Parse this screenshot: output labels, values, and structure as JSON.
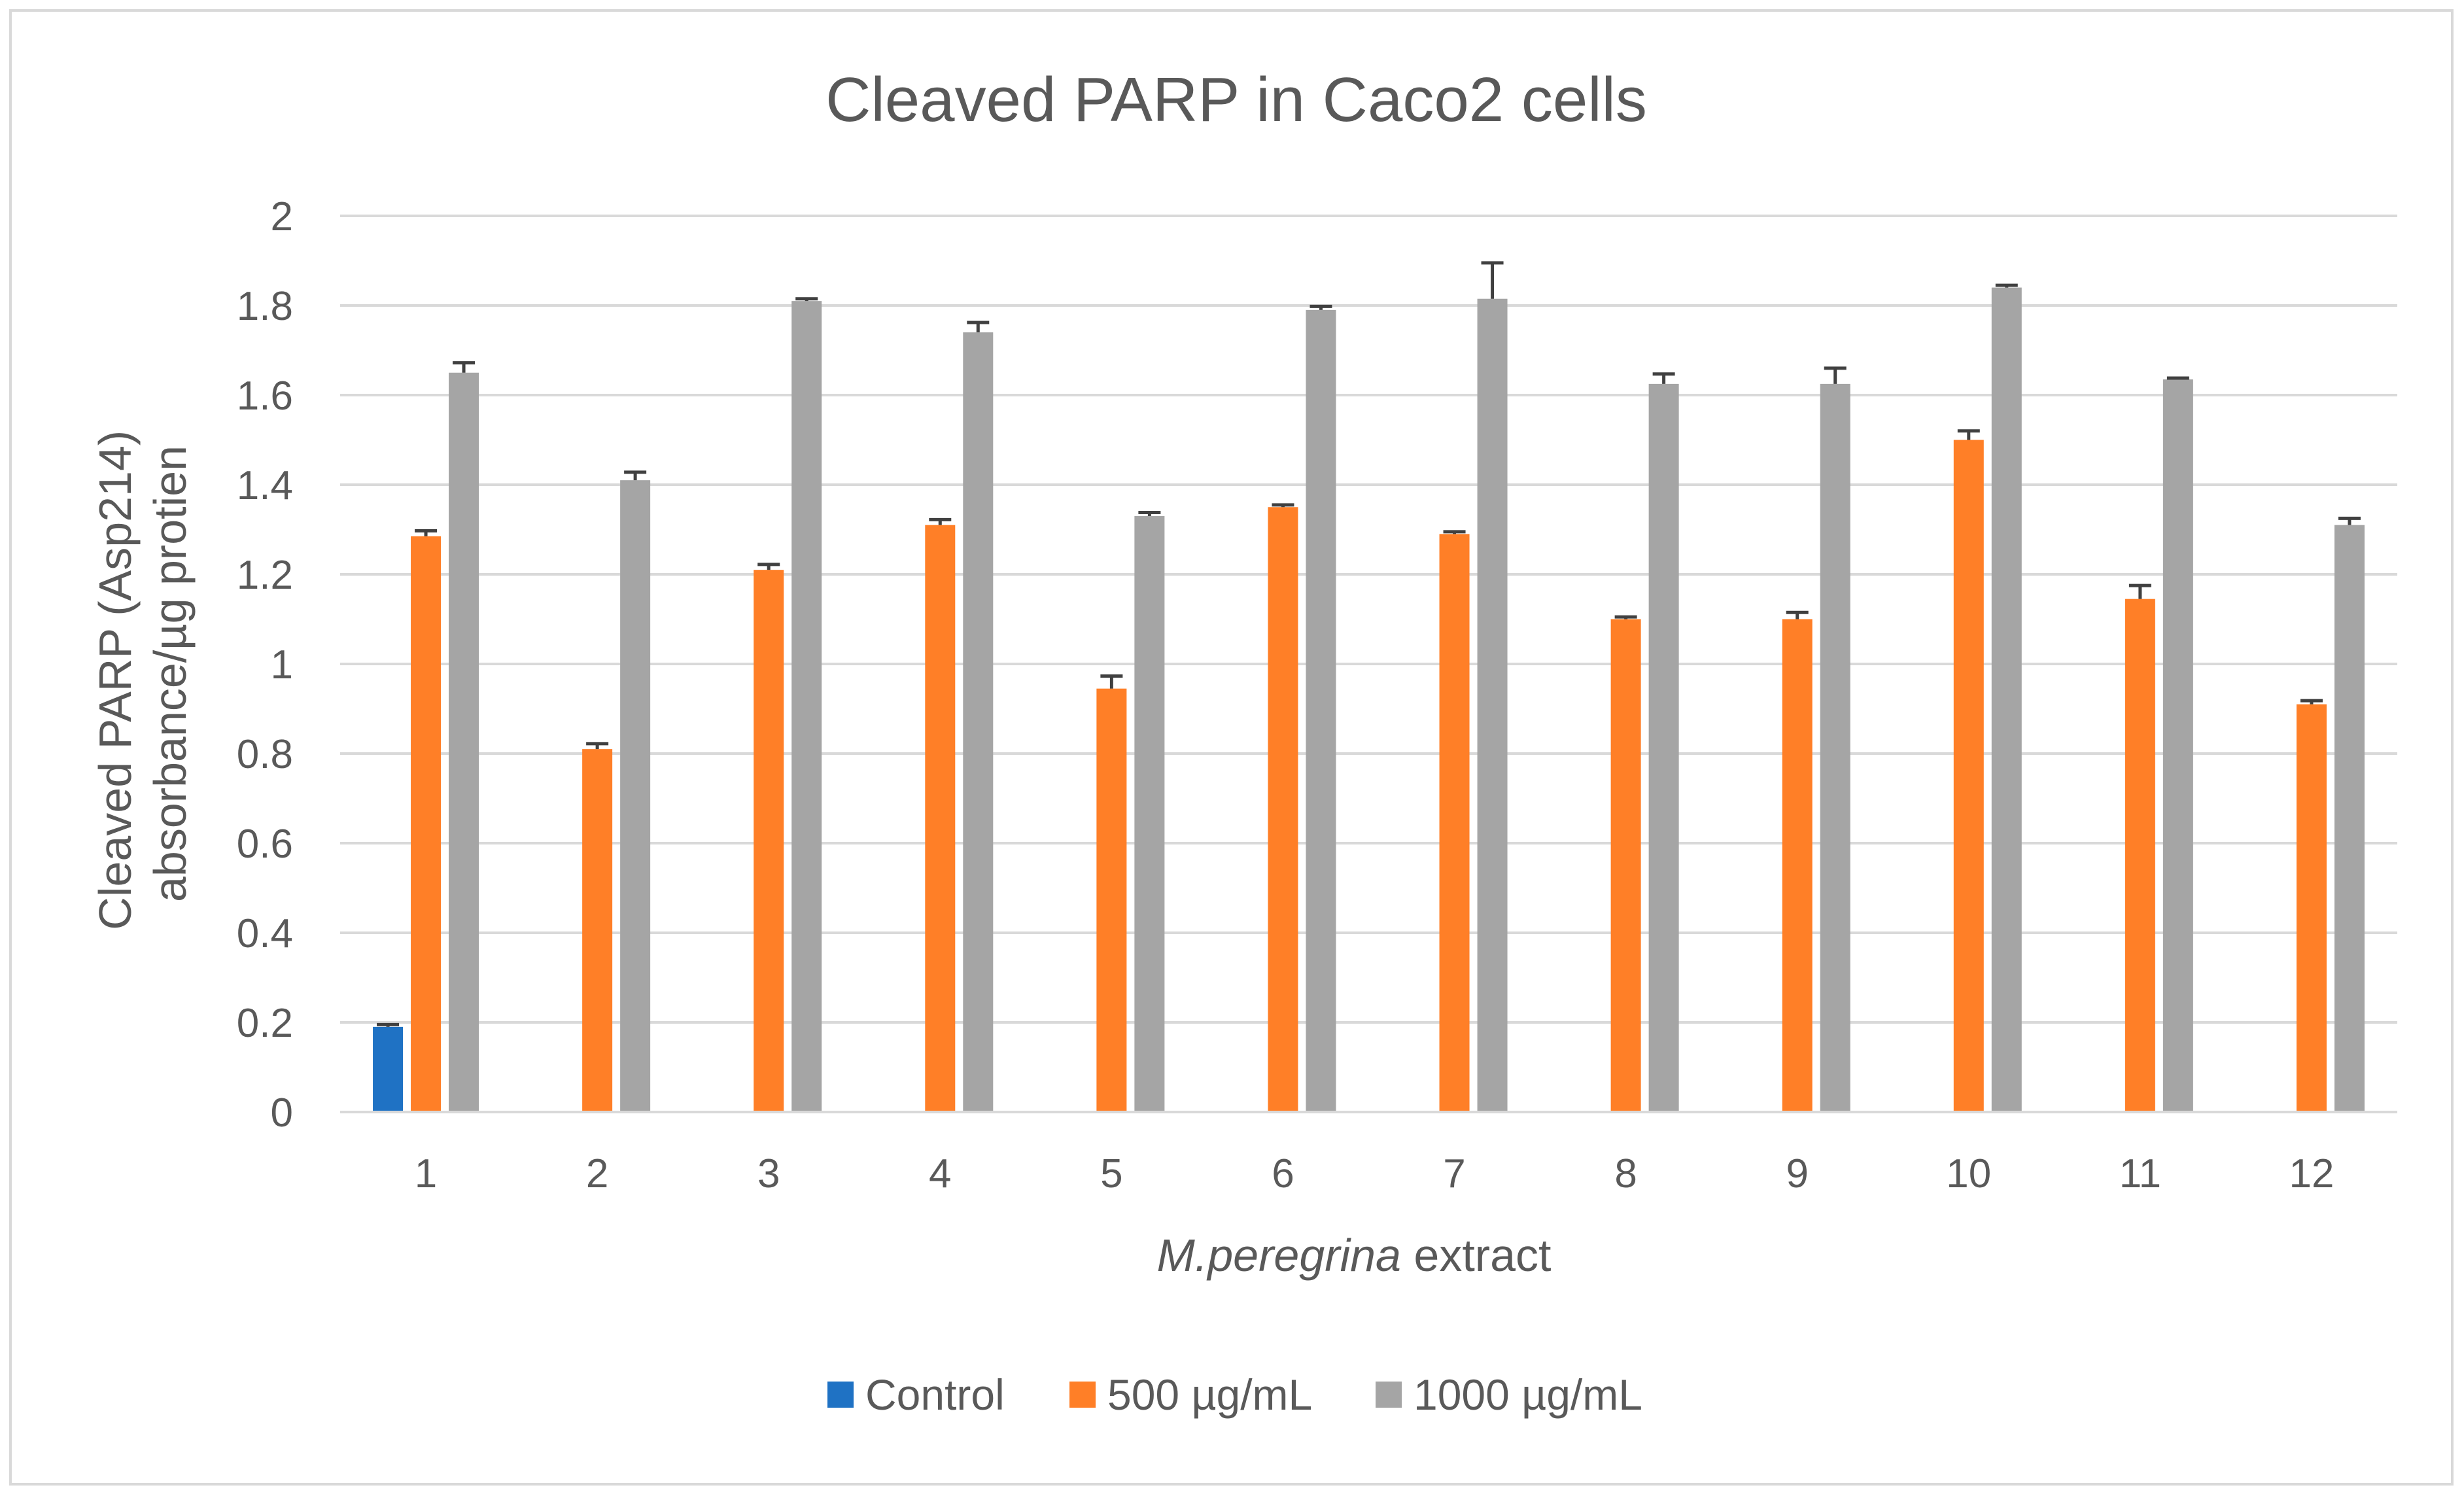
{
  "chart_data": {
    "type": "bar",
    "title": "Cleaved PARP in Caco2 cells",
    "ylabel_lines": [
      "Cleaved PARP (Asp214)",
      "absorbance/µg protien"
    ],
    "xlabel_italic": "M.peregrina",
    "xlabel_rest": " extract",
    "ylim": [
      0,
      2
    ],
    "yticks": [
      0,
      0.2,
      0.4,
      0.6,
      0.8,
      1,
      1.2,
      1.4,
      1.6,
      1.8,
      2
    ],
    "ytick_labels": [
      "0",
      "0.2",
      "0.4",
      "0.6",
      "0.8",
      "1",
      "1.2",
      "1.4",
      "1.6",
      "1.8",
      "2"
    ],
    "grid": true,
    "legend_position": "bottom",
    "categories": [
      "1",
      "2",
      "3",
      "4",
      "5",
      "6",
      "7",
      "8",
      "9",
      "10",
      "11",
      "12"
    ],
    "series": [
      {
        "name": "Control",
        "color": "#1f72c4",
        "values": [
          0.19,
          null,
          null,
          null,
          null,
          null,
          null,
          null,
          null,
          null,
          null,
          null
        ],
        "errors": [
          0.005,
          null,
          null,
          null,
          null,
          null,
          null,
          null,
          null,
          null,
          null,
          null
        ]
      },
      {
        "name": "500 µg/mL",
        "color": "#ff7f27",
        "values": [
          1.285,
          0.81,
          1.21,
          1.31,
          0.945,
          1.35,
          1.29,
          1.1,
          1.1,
          1.5,
          1.145,
          0.91
        ],
        "errors": [
          0.012,
          0.012,
          0.012,
          0.012,
          0.028,
          0.005,
          0.005,
          0.005,
          0.015,
          0.02,
          0.03,
          0.008
        ]
      },
      {
        "name": "1000 µg/mL",
        "color": "#a5a5a5",
        "values": [
          1.65,
          1.41,
          1.81,
          1.74,
          1.33,
          1.79,
          1.815,
          1.625,
          1.625,
          1.84,
          1.635,
          1.31
        ],
        "errors": [
          0.022,
          0.018,
          0.005,
          0.022,
          0.008,
          0.008,
          0.08,
          0.022,
          0.035,
          0.005,
          0.003,
          0.015
        ]
      }
    ]
  }
}
